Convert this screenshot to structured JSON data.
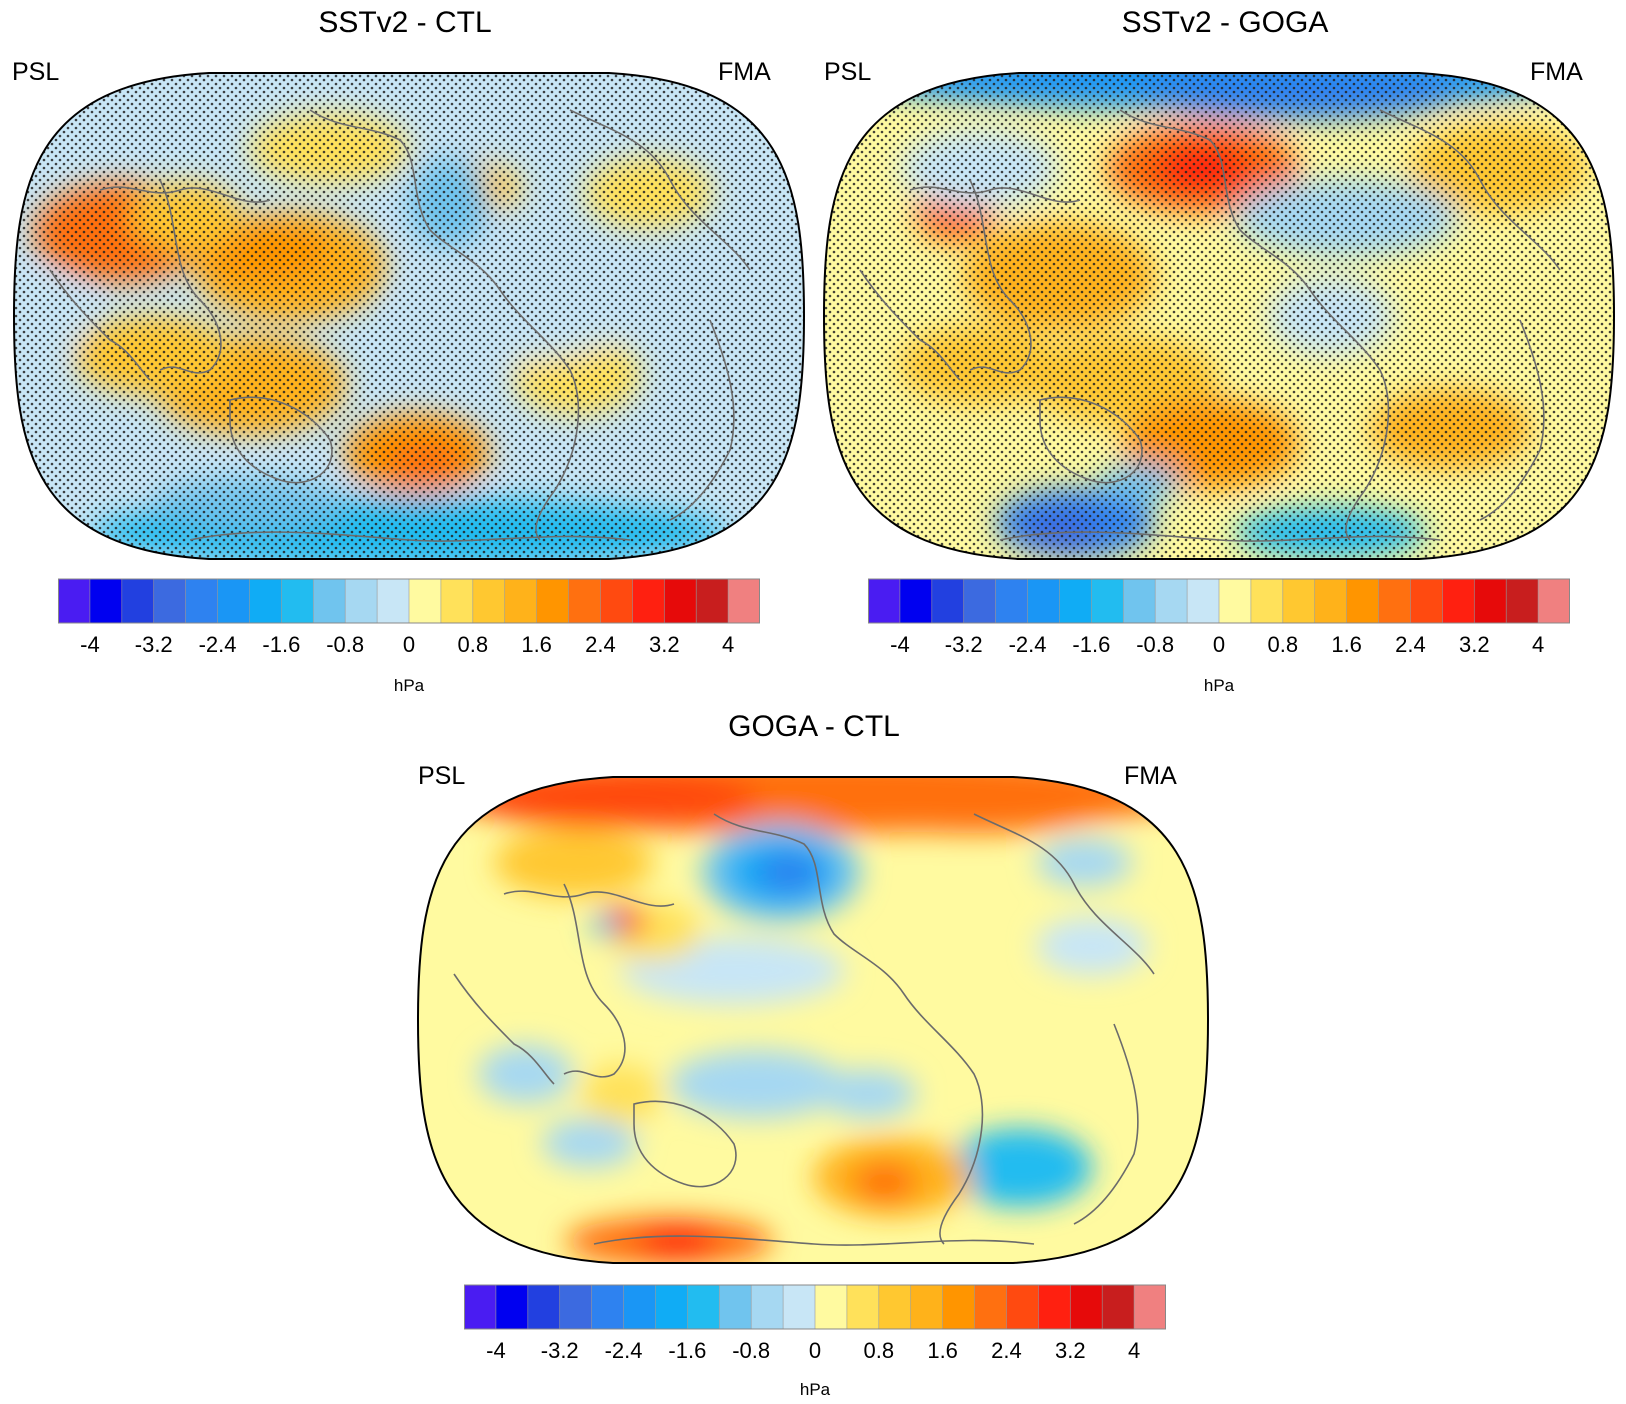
{
  "panels": [
    {
      "title": "SSTv2 - CTL",
      "left_label": "PSL",
      "right_label": "FMA",
      "stippled": true
    },
    {
      "title": "SSTv2 - GOGA",
      "left_label": "PSL",
      "right_label": "FMA",
      "stippled": true
    },
    {
      "title": "GOGA - CTL",
      "left_label": "PSL",
      "right_label": "FMA",
      "stippled": false
    }
  ],
  "colorbar": {
    "colors": [
      "#4a1cf2",
      "#0000f0",
      "#2240e0",
      "#3c6ae0",
      "#2e82f0",
      "#1a96f5",
      "#10acf5",
      "#22bcf0",
      "#70c4ee",
      "#a6d8f2",
      "#c8e6f6",
      "#fffaa0",
      "#ffe15a",
      "#ffc830",
      "#ffb21a",
      "#ff9500",
      "#ff7010",
      "#ff4a10",
      "#ff2010",
      "#e60a0a",
      "#c81e1e",
      "#f08080"
    ],
    "tick_labels": [
      "-4",
      "-3.2",
      "-2.4",
      "-1.6",
      "-0.8",
      "0",
      "0.8",
      "1.6",
      "2.4",
      "3.2",
      "4"
    ],
    "unit": "hPa"
  }
}
